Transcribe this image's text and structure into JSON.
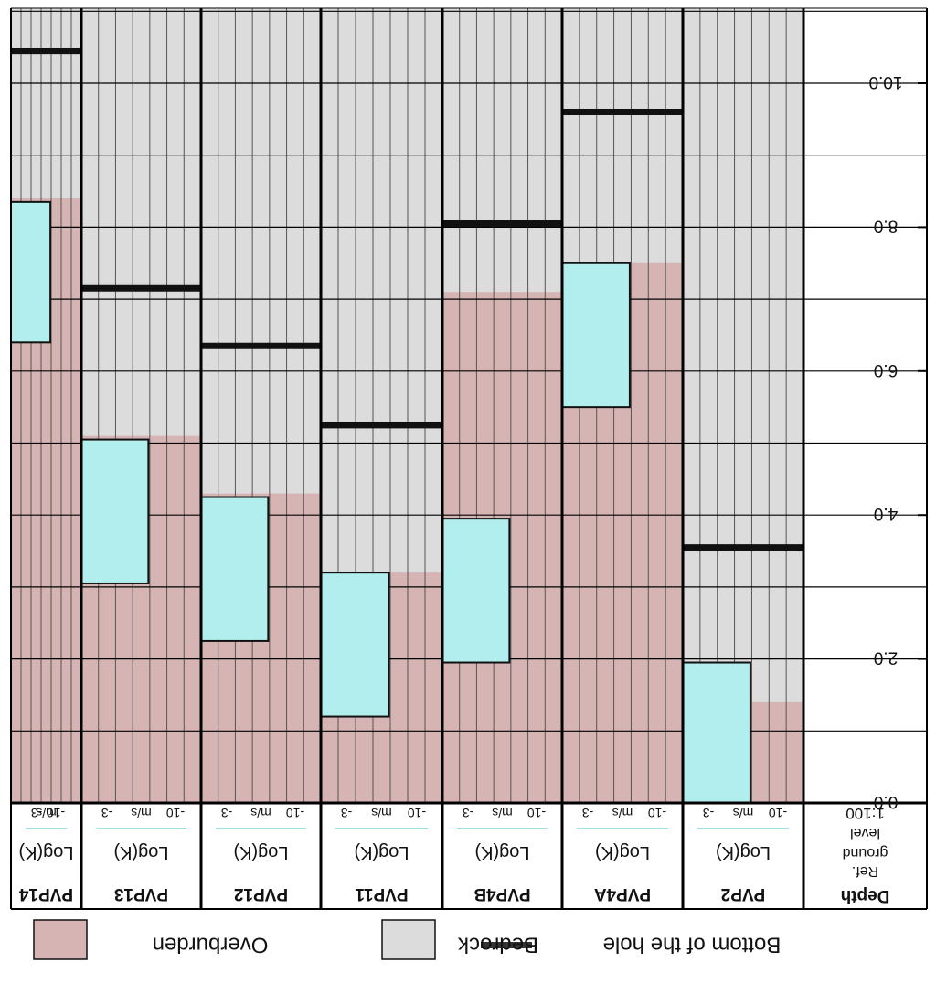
{
  "chart_data": {
    "type": "bar",
    "title": "",
    "xlabel": "",
    "ylabel": "Depth",
    "depth_header": [
      "Depth",
      "Ref.",
      "ground",
      "level",
      "1:100"
    ],
    "y_ticks": [
      "0.0",
      "2.0",
      "4.0",
      "6.0",
      "8.0",
      "10.0"
    ],
    "ylim": [
      0,
      11
    ],
    "grid": true,
    "image_rotated_180": true,
    "column_subheader": "Log(K)",
    "scale_labels": [
      "-10",
      "m/s",
      "-3"
    ],
    "categories": [
      "PVP2",
      "PVP4A",
      "PVP4B",
      "PVP11",
      "PVP12",
      "PVP13",
      "PVP14"
    ],
    "series": [
      {
        "name": "Overburden",
        "values": [
          1.4,
          7.5,
          7.1,
          3.2,
          4.3,
          5.1,
          8.4
        ]
      },
      {
        "name": "Bottom of the hole",
        "values": [
          3.55,
          9.6,
          8.05,
          5.25,
          6.35,
          7.15,
          10.45
        ]
      }
    ],
    "tested_intervals": [
      {
        "from": 0.0,
        "to": 1.95
      },
      {
        "from": 5.5,
        "to": 7.5
      },
      {
        "from": 1.95,
        "to": 3.95
      },
      {
        "from": 1.2,
        "to": 3.2
      },
      {
        "from": 2.25,
        "to": 4.25
      },
      {
        "from": 3.05,
        "to": 5.05
      },
      {
        "from": 6.4,
        "to": 8.35
      }
    ],
    "legend": {
      "placement": "bottom",
      "items": [
        {
          "label": "Overburden",
          "color": "#d6b4b4"
        },
        {
          "label": "Bedrock",
          "color": "#dcdcdc"
        },
        {
          "label": "Bottom of the hole",
          "color": "#333333"
        }
      ]
    },
    "colors": {
      "overburden": "#d6b4b4",
      "bedrock": "#dcdcdc",
      "interval": "#b2eeee",
      "bottom_line": "#111111",
      "scale_line": "#9fe0e0"
    }
  }
}
